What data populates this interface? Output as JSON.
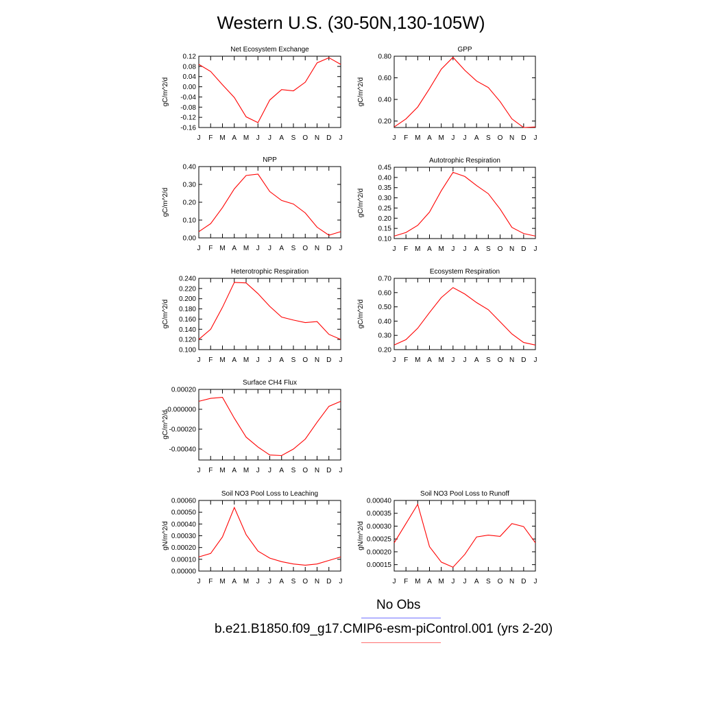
{
  "title": "Western U.S. (30-50N,130-105W)",
  "colors": {
    "model_line": "#ff0000",
    "obs_line": "#6f6fff",
    "axis": "#000000"
  },
  "month_labels": [
    "J",
    "F",
    "M",
    "A",
    "M",
    "J",
    "J",
    "A",
    "S",
    "O",
    "N",
    "D",
    "J"
  ],
  "legend": {
    "obs_label": "No Obs",
    "model_label": "b.e21.B1850.f09_g17.CMIP6-esm-piControl.001 (yrs 2-20)"
  },
  "chart_data": [
    {
      "type": "line",
      "title": "Net Ecosystem Exchange",
      "ylabel": "gC/m^2/d",
      "ylim": [
        -0.16,
        0.12
      ],
      "yticks": [
        -0.16,
        -0.12,
        -0.08,
        -0.04,
        0.0,
        0.04,
        0.08,
        0.12
      ],
      "ytick_labels": [
        "-0.16",
        "-0.12",
        "-0.08",
        "-0.04",
        "0.00",
        "0.04",
        "0.08",
        "0.12"
      ],
      "values": [
        0.088,
        0.06,
        0.008,
        -0.042,
        -0.118,
        -0.141,
        -0.052,
        -0.011,
        -0.016,
        0.018,
        0.094,
        0.114,
        0.088
      ]
    },
    {
      "type": "line",
      "title": "GPP",
      "ylabel": "gC/m^2/d",
      "ylim": [
        0.14,
        0.8
      ],
      "yticks": [
        0.2,
        0.4,
        0.6,
        0.8
      ],
      "ytick_labels": [
        "0.20",
        "0.40",
        "0.60",
        "0.80"
      ],
      "values": [
        0.145,
        0.22,
        0.33,
        0.5,
        0.68,
        0.79,
        0.67,
        0.57,
        0.51,
        0.38,
        0.22,
        0.14,
        0.145
      ]
    },
    {
      "type": "line",
      "title": "NPP",
      "ylabel": "gC/m^2/d",
      "ylim": [
        0.0,
        0.4
      ],
      "yticks": [
        0.0,
        0.1,
        0.2,
        0.3,
        0.4
      ],
      "ytick_labels": [
        "0.00",
        "0.10",
        "0.20",
        "0.30",
        "0.40"
      ],
      "values": [
        0.035,
        0.08,
        0.17,
        0.275,
        0.35,
        0.358,
        0.26,
        0.21,
        0.19,
        0.14,
        0.06,
        0.015,
        0.035
      ]
    },
    {
      "type": "line",
      "title": "Autotrophic Respiration",
      "ylabel": "gC/m^2/d",
      "ylim": [
        0.1,
        0.45
      ],
      "yticks": [
        0.1,
        0.15,
        0.2,
        0.25,
        0.3,
        0.35,
        0.4,
        0.45
      ],
      "ytick_labels": [
        "0.10",
        "0.15",
        "0.20",
        "0.25",
        "0.30",
        "0.35",
        "0.40",
        "0.45"
      ],
      "values": [
        0.112,
        0.13,
        0.165,
        0.23,
        0.335,
        0.425,
        0.405,
        0.36,
        0.32,
        0.245,
        0.155,
        0.125,
        0.112
      ]
    },
    {
      "type": "line",
      "title": "Heterotrophic Respiration",
      "ylabel": "gC/m^2/d",
      "ylim": [
        0.1,
        0.24
      ],
      "yticks": [
        0.1,
        0.12,
        0.14,
        0.16,
        0.18,
        0.2,
        0.22,
        0.24
      ],
      "ytick_labels": [
        "0.100",
        "0.120",
        "0.140",
        "0.160",
        "0.180",
        "0.200",
        "0.220",
        "0.240"
      ],
      "values": [
        0.12,
        0.14,
        0.183,
        0.232,
        0.231,
        0.21,
        0.185,
        0.164,
        0.158,
        0.153,
        0.155,
        0.13,
        0.12
      ]
    },
    {
      "type": "line",
      "title": "Ecosystem Respiration",
      "ylabel": "gC/m^2/d",
      "ylim": [
        0.2,
        0.7
      ],
      "yticks": [
        0.2,
        0.3,
        0.4,
        0.5,
        0.6,
        0.7
      ],
      "ytick_labels": [
        "0.20",
        "0.30",
        "0.40",
        "0.50",
        "0.60",
        "0.70"
      ],
      "values": [
        0.232,
        0.27,
        0.35,
        0.46,
        0.565,
        0.635,
        0.59,
        0.53,
        0.48,
        0.395,
        0.31,
        0.25,
        0.232
      ]
    },
    {
      "type": "line",
      "title": "Surface CH4 Flux",
      "ylabel": "gC/m^2/d",
      "ylim": [
        -0.00051,
        0.0002
      ],
      "yticks": [
        -0.0004,
        -0.0002,
        0.0,
        0.0002
      ],
      "ytick_labels": [
        "-0.00040",
        "-0.00020",
        "-0.000000",
        "0.00020"
      ],
      "values": [
        8e-05,
        0.00011,
        0.00012,
        -9e-05,
        -0.00028,
        -0.00038,
        -0.00046,
        -0.000465,
        -0.0004,
        -0.0003,
        -0.00013,
        3e-05,
        8e-05
      ]
    },
    {
      "type": "line",
      "title": "Soil NO3 Pool Loss to Leaching",
      "ylabel": "gN/m^2/d",
      "ylim": [
        0.0,
        0.0006
      ],
      "yticks": [
        0.0,
        0.0001,
        0.0002,
        0.0003,
        0.0004,
        0.0005,
        0.0006
      ],
      "ytick_labels": [
        "0.00000",
        "0.00010",
        "0.00020",
        "0.00030",
        "0.00040",
        "0.00050",
        "0.00060"
      ],
      "values": [
        0.00012,
        0.00015,
        0.00029,
        0.00054,
        0.00031,
        0.00017,
        0.00011,
        8e-05,
        6e-05,
        5e-05,
        6e-05,
        9e-05,
        0.00012
      ]
    },
    {
      "type": "line",
      "title": "Soil NO3 Pool Loss to Runoff",
      "ylabel": "gN/m^2/d",
      "ylim": [
        0.000125,
        0.0004
      ],
      "yticks": [
        0.00015,
        0.0002,
        0.00025,
        0.0003,
        0.00035,
        0.0004
      ],
      "ytick_labels": [
        "0.00015",
        "0.00020",
        "0.00025",
        "0.00030",
        "0.00035",
        "0.00040"
      ],
      "values": [
        0.000235,
        0.00031,
        0.000385,
        0.00022,
        0.00016,
        0.00014,
        0.00019,
        0.000258,
        0.000265,
        0.00026,
        0.00031,
        0.000298,
        0.000235
      ]
    }
  ]
}
